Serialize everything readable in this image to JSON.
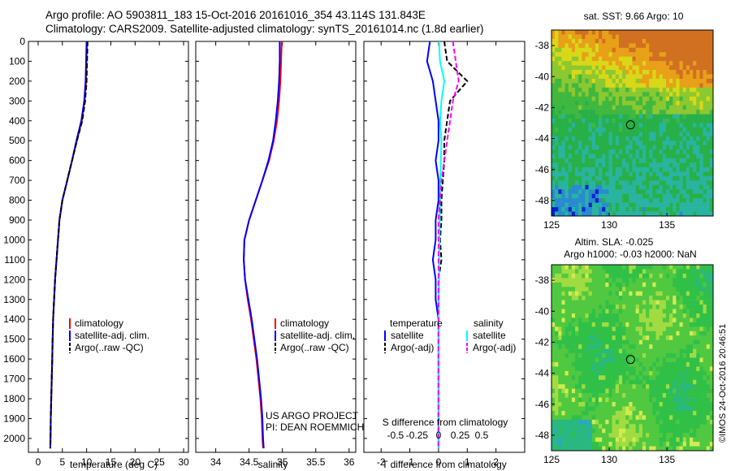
{
  "header": {
    "title_line1": "Argo profile: AO 5903811_183 15-Oct-2016 20161016_354 43.114S 131.843E",
    "title_line2": "Climatology: CARS2009. Satellite-adjusted climatology: synTS_20161014.nc (1.8d earlier)"
  },
  "footer": {
    "timestamp": "©IMOS 24-Oct-2016 20:46:51"
  },
  "colors": {
    "climatology": "#ff0000",
    "satellite": "#0000ff",
    "argo": "#000000",
    "salinity_satellite": "#00ffff",
    "salinity_argo": "#ff00ff"
  },
  "chart_data": [
    {
      "id": "temperature",
      "type": "line",
      "xlabel": "temperature (deg C)",
      "ylabel": "",
      "xlim": [
        -2,
        31
      ],
      "ylim": [
        2070,
        0
      ],
      "xticks": [
        0,
        5,
        10,
        15,
        20,
        25,
        30
      ],
      "yticks": [
        0,
        100,
        200,
        300,
        400,
        500,
        600,
        700,
        800,
        900,
        1000,
        1100,
        1200,
        1300,
        1400,
        1500,
        1600,
        1700,
        1800,
        1900,
        2000
      ],
      "legend": [
        "climatology",
        "satellite-adj. clim.",
        "Argo(..raw -QC)"
      ],
      "series": [
        {
          "name": "climatology",
          "color": "#ff0000",
          "style": "solid",
          "x": [
            10.1,
            10.0,
            9.9,
            9.6,
            9.0,
            8.0,
            7.0,
            6.0,
            5.0,
            4.4,
            4.1,
            3.8,
            3.5,
            3.3,
            3.1,
            3.0,
            2.9,
            2.8,
            2.7,
            2.6,
            2.55,
            2.5
          ],
          "y": [
            0,
            100,
            200,
            300,
            400,
            500,
            600,
            700,
            800,
            900,
            1000,
            1100,
            1200,
            1300,
            1400,
            1500,
            1600,
            1700,
            1800,
            1900,
            2000,
            2050
          ]
        },
        {
          "name": "satellite-adj. clim.",
          "color": "#0000ff",
          "style": "solid",
          "x": [
            10.0,
            9.9,
            9.8,
            9.5,
            8.9,
            7.9,
            7.0,
            6.0,
            5.0,
            4.4,
            4.1,
            3.8,
            3.5,
            3.3,
            3.1,
            3.0,
            2.9,
            2.8,
            2.7,
            2.6,
            2.55,
            2.5
          ],
          "y": [
            0,
            100,
            200,
            300,
            400,
            500,
            600,
            700,
            800,
            900,
            1000,
            1100,
            1200,
            1300,
            1400,
            1500,
            1600,
            1700,
            1800,
            1900,
            2000,
            2050
          ]
        },
        {
          "name": "Argo(..raw -QC)",
          "color": "#000000",
          "style": "dash",
          "x": [
            10.2,
            10.1,
            10.0,
            9.7,
            9.1,
            8.0,
            7.0,
            6.0,
            5.0,
            4.4,
            4.1,
            3.8,
            3.5,
            3.3,
            3.1,
            3.0,
            2.9,
            2.8,
            2.7,
            2.6,
            2.55,
            2.5
          ],
          "y": [
            0,
            100,
            200,
            300,
            400,
            500,
            600,
            700,
            800,
            900,
            1000,
            1100,
            1200,
            1300,
            1400,
            1500,
            1600,
            1700,
            1800,
            1900,
            2000,
            2050
          ]
        }
      ]
    },
    {
      "id": "salinity",
      "type": "line",
      "xlabel": "salinity",
      "ylabel": "",
      "xlim": [
        33.7,
        36.1
      ],
      "ylim": [
        2070,
        0
      ],
      "xticks": [
        34,
        34.5,
        35,
        35.5,
        36
      ],
      "legend": [
        "climatology",
        "satellite-adj. clim.",
        "Argo(..raw -QC)"
      ],
      "annotation": [
        "US ARGO PROJECT",
        "PI: DEAN ROEMMICH"
      ],
      "series": [
        {
          "name": "climatology",
          "color": "#ff0000",
          "style": "solid",
          "x": [
            34.99,
            34.98,
            34.97,
            34.95,
            34.92,
            34.87,
            34.8,
            34.7,
            34.6,
            34.5,
            34.43,
            34.42,
            34.44,
            34.48,
            34.53,
            34.57,
            34.61,
            34.64,
            34.67,
            34.69,
            34.7,
            34.71
          ],
          "y": [
            0,
            100,
            200,
            300,
            400,
            500,
            600,
            700,
            800,
            900,
            1000,
            1100,
            1200,
            1300,
            1400,
            1500,
            1600,
            1700,
            1800,
            1900,
            2000,
            2050
          ]
        },
        {
          "name": "satellite-adj. clim.",
          "color": "#0000ff",
          "style": "solid",
          "x": [
            34.96,
            34.96,
            34.95,
            34.93,
            34.9,
            34.86,
            34.79,
            34.7,
            34.6,
            34.5,
            34.43,
            34.42,
            34.44,
            34.49,
            34.54,
            34.58,
            34.62,
            34.65,
            34.68,
            34.7,
            34.71,
            34.72
          ],
          "y": [
            0,
            100,
            200,
            300,
            400,
            500,
            600,
            700,
            800,
            900,
            1000,
            1100,
            1200,
            1300,
            1400,
            1500,
            1600,
            1700,
            1800,
            1900,
            2000,
            2050
          ]
        }
      ]
    },
    {
      "id": "difference",
      "type": "line",
      "xlabel": "T difference from climatology",
      "ylabel": "",
      "xlim": [
        -2.6,
        3.0
      ],
      "ylim": [
        2070,
        0
      ],
      "xticks": [
        -2,
        -1,
        0,
        1,
        2
      ],
      "top_xlabel": "S difference from climatology",
      "top_xticks": [
        "-0.5",
        "-0.25",
        "0",
        "0.25",
        "0.5"
      ],
      "legend_groups": [
        {
          "heading": "temperature",
          "items": [
            "satellite",
            "Argo(-adj)"
          ]
        },
        {
          "heading": "salinity",
          "items": [
            "satellite",
            "Argo(-adj)"
          ]
        }
      ],
      "series": [
        {
          "name": "temperature satellite",
          "color": "#0000ff",
          "style": "solid",
          "x": [
            -0.3,
            -0.4,
            -0.2,
            -0.1,
            0.0,
            0.0,
            -0.1,
            0.0,
            0.0,
            -0.1,
            -0.1,
            -0.2,
            -0.1,
            -0.1,
            0.0,
            0.0,
            0.0,
            0.0,
            0.0,
            0.0,
            0.0
          ],
          "y": [
            0,
            100,
            200,
            300,
            400,
            500,
            600,
            700,
            800,
            900,
            1000,
            1100,
            1200,
            1300,
            1400,
            1500,
            1600,
            1700,
            1800,
            1900,
            2050
          ]
        },
        {
          "name": "temperature Argo(-adj)",
          "color": "#000000",
          "style": "dash",
          "x": [
            0.2,
            0.3,
            1.0,
            0.4,
            0.3,
            0.2,
            0.2,
            0.15,
            0.1,
            0.1,
            0.05,
            0.1,
            0.0,
            0.0,
            0.0,
            0.0,
            0.0,
            0.0,
            0.0,
            0.0,
            0.0
          ],
          "y": [
            0,
            100,
            200,
            300,
            400,
            500,
            600,
            700,
            800,
            900,
            1000,
            1100,
            1200,
            1300,
            1400,
            1500,
            1600,
            1700,
            1800,
            1900,
            2050
          ]
        },
        {
          "name": "salinity satellite",
          "color": "#00ffff",
          "style": "solid",
          "x": [
            0.02,
            0.05,
            0.2,
            0.1,
            0.05,
            0.1,
            0.08,
            0.06,
            0.05,
            0.04,
            0.03,
            0.02,
            0.02,
            0.01,
            0.0,
            0.0,
            0.0,
            0.0,
            0.0,
            0.0,
            0.0
          ],
          "y": [
            0,
            100,
            200,
            300,
            400,
            500,
            600,
            700,
            800,
            900,
            1000,
            1100,
            1200,
            1300,
            1400,
            1500,
            1600,
            1700,
            1800,
            1900,
            2050
          ]
        },
        {
          "name": "salinity Argo(-adj)",
          "color": "#ff00ff",
          "style": "dash",
          "x": [
            0.5,
            0.6,
            0.7,
            0.5,
            0.4,
            0.3,
            0.2,
            0.1,
            0.05,
            0.0,
            0.0,
            0.0,
            0.0,
            0.0,
            0.0,
            0.0,
            0.0,
            0.0,
            0.0,
            0.0,
            0.0
          ],
          "y": [
            0,
            100,
            200,
            300,
            400,
            500,
            600,
            700,
            800,
            900,
            1000,
            1100,
            1200,
            1300,
            1400,
            1500,
            1600,
            1700,
            1800,
            1900,
            2050
          ]
        }
      ]
    },
    {
      "id": "sst-map",
      "type": "heatmap",
      "title": "sat. SST: 9.66 Argo: 10",
      "xlim": [
        125,
        139
      ],
      "ylim": [
        -49,
        -37
      ],
      "xticks": [
        125,
        130,
        135
      ],
      "yticks": [
        -38,
        -40,
        -42,
        -44,
        -46,
        -48
      ],
      "marker": {
        "lon": 131.843,
        "lat": -43.114
      },
      "palette": [
        "#0022cc",
        "#2a8ad0",
        "#28b4a0",
        "#28b048",
        "#40b840",
        "#8cc830",
        "#d8d818",
        "#e8a018",
        "#d07020"
      ]
    },
    {
      "id": "sla-map",
      "type": "heatmap",
      "title_line1": "Altim. SLA: -0.025",
      "title_line2": "Argo h1000: -0.03 h2000: NaN",
      "xlim": [
        125,
        139
      ],
      "ylim": [
        -49,
        -37
      ],
      "xticks": [
        125,
        130,
        135
      ],
      "yticks": [
        -38,
        -40,
        -42,
        -44,
        -46,
        -48
      ],
      "marker": {
        "lon": 131.843,
        "lat": -43.114
      },
      "palette": [
        "#2aa8c0",
        "#28b880",
        "#30c048",
        "#50c840",
        "#a0dc40",
        "#d0ec50"
      ]
    }
  ]
}
